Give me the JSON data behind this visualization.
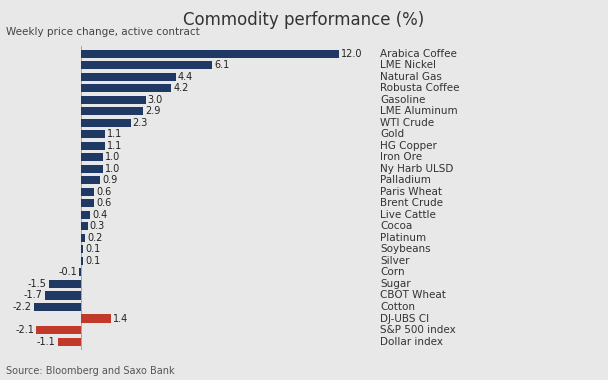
{
  "title": "Commodity performance (%)",
  "subtitle": "Weekly price change, active contract",
  "source": "Source: Bloomberg and Saxo Bank",
  "categories": [
    "Arabica Coffee",
    "LME Nickel",
    "Natural Gas",
    "Robusta Coffee",
    "Gasoline",
    "LME Aluminum",
    "WTI Crude",
    "Gold",
    "HG Copper",
    "Iron Ore",
    "Ny Harb ULSD",
    "Palladium",
    "Paris Wheat",
    "Brent Crude",
    "Live Cattle",
    "Cocoa",
    "Platinum",
    "Soybeans",
    "Silver",
    "Corn",
    "Sugar",
    "CBOT Wheat",
    "Cotton",
    "DJ-UBS CI",
    "S&P 500 index",
    "Dollar index"
  ],
  "values": [
    12.0,
    6.1,
    4.4,
    4.2,
    3.0,
    2.9,
    2.3,
    1.1,
    1.1,
    1.0,
    1.0,
    0.9,
    0.6,
    0.6,
    0.4,
    0.3,
    0.2,
    0.1,
    0.1,
    -0.1,
    -1.5,
    -1.7,
    -2.2,
    1.4,
    -2.1,
    -1.1
  ],
  "colors": [
    "#1f3864",
    "#1f3864",
    "#1f3864",
    "#1f3864",
    "#1f3864",
    "#1f3864",
    "#1f3864",
    "#1f3864",
    "#1f3864",
    "#1f3864",
    "#1f3864",
    "#1f3864",
    "#1f3864",
    "#1f3864",
    "#1f3864",
    "#1f3864",
    "#1f3864",
    "#1f3864",
    "#1f3864",
    "#1f3864",
    "#1f3864",
    "#1f3864",
    "#1f3864",
    "#c0392b",
    "#c0392b",
    "#c0392b"
  ],
  "background_color": "#e8e8e8",
  "title_fontsize": 12,
  "subtitle_fontsize": 7.5,
  "label_fontsize": 7.5,
  "value_fontsize": 7,
  "source_fontsize": 7,
  "bar_height": 0.7,
  "xlim_min": -3.5,
  "xlim_max": 13.5
}
